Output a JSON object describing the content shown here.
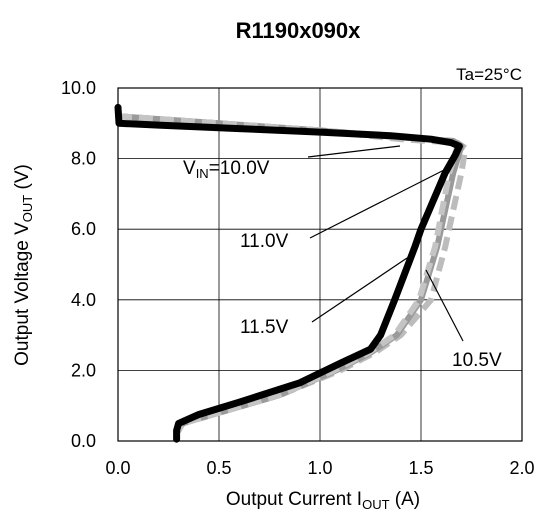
{
  "chart_data": {
    "type": "line",
    "title": "R1190x090x",
    "condition": "Ta=25°C",
    "xlabel": {
      "main": "Output Current I",
      "sub": "OUT",
      "unit": " (A)"
    },
    "ylabel": {
      "main": "Output  Voltage V",
      "sub": "OUT",
      "unit": " (V)"
    },
    "xlim": [
      0,
      2
    ],
    "ylim": [
      0,
      10
    ],
    "x_ticks": [
      "0.0",
      "0.5",
      "1.0",
      "1.5",
      "2.0"
    ],
    "y_ticks": [
      "0.0",
      "2.0",
      "4.0",
      "6.0",
      "8.0",
      "10.0"
    ],
    "grid": true,
    "series": [
      {
        "name": "10.5V",
        "color": "#bcbcbc",
        "dash": true,
        "points": [
          [
            0,
            9.2
          ],
          [
            0.5,
            9.0
          ],
          [
            1.0,
            8.8
          ],
          [
            1.4,
            8.55
          ],
          [
            1.68,
            8.45
          ],
          [
            1.72,
            8.3
          ],
          [
            1.7,
            7.6
          ],
          [
            1.62,
            5.5
          ],
          [
            1.55,
            4.0
          ],
          [
            1.4,
            3.0
          ],
          [
            1.27,
            2.5
          ],
          [
            1.1,
            2.0
          ],
          [
            0.8,
            1.3
          ],
          [
            0.5,
            0.8
          ],
          [
            0.32,
            0.5
          ],
          [
            0.3,
            0.3
          ]
        ]
      },
      {
        "name": "11.0V",
        "color": "#9a9a9a",
        "dash": false,
        "points": [
          [
            0,
            9.2
          ],
          [
            0.5,
            9.0
          ],
          [
            1.0,
            8.8
          ],
          [
            1.4,
            8.6
          ],
          [
            1.66,
            8.5
          ],
          [
            1.7,
            8.35
          ],
          [
            1.66,
            7.6
          ],
          [
            1.58,
            5.5
          ],
          [
            1.5,
            4.0
          ],
          [
            1.38,
            3.0
          ],
          [
            1.25,
            2.5
          ],
          [
            1.08,
            2.0
          ],
          [
            0.8,
            1.3
          ],
          [
            0.5,
            0.8
          ],
          [
            0.32,
            0.5
          ],
          [
            0.3,
            0.3
          ]
        ]
      },
      {
        "name": "11.5V",
        "color": "#c4c4c4",
        "dash": true,
        "points": [
          [
            0,
            9.2
          ],
          [
            0.5,
            9.0
          ],
          [
            1.0,
            8.8
          ],
          [
            1.4,
            8.6
          ],
          [
            1.65,
            8.5
          ],
          [
            1.68,
            8.35
          ],
          [
            1.64,
            7.6
          ],
          [
            1.57,
            5.5
          ],
          [
            1.49,
            4.0
          ],
          [
            1.37,
            3.0
          ],
          [
            1.24,
            2.5
          ],
          [
            1.07,
            2.0
          ],
          [
            0.8,
            1.3
          ],
          [
            0.5,
            0.8
          ],
          [
            0.32,
            0.5
          ],
          [
            0.3,
            0.3
          ]
        ]
      },
      {
        "name": "10.0V",
        "color": "#000000",
        "dash": false,
        "points": [
          [
            0,
            9.45
          ],
          [
            0.005,
            9.0
          ],
          [
            0.2,
            8.95
          ],
          [
            0.6,
            8.85
          ],
          [
            1.0,
            8.75
          ],
          [
            1.35,
            8.65
          ],
          [
            1.55,
            8.55
          ],
          [
            1.65,
            8.45
          ],
          [
            1.69,
            8.35
          ],
          [
            1.67,
            8.1
          ],
          [
            1.62,
            7.6
          ],
          [
            1.5,
            6.0
          ],
          [
            1.47,
            5.5
          ],
          [
            1.37,
            4.0
          ],
          [
            1.3,
            3.0
          ],
          [
            1.25,
            2.6
          ],
          [
            1.1,
            2.2
          ],
          [
            0.9,
            1.65
          ],
          [
            0.6,
            1.1
          ],
          [
            0.4,
            0.75
          ],
          [
            0.3,
            0.5
          ],
          [
            0.29,
            0.3
          ],
          [
            0.29,
            0.05
          ]
        ]
      }
    ],
    "annotations": [
      {
        "label": "V",
        "sub": "IN",
        "rest": "=10.0V",
        "series": "10.0V"
      },
      {
        "label": "11.0V",
        "series": "11.0V"
      },
      {
        "label": "11.5V",
        "series": "11.5V"
      },
      {
        "label": "10.5V",
        "series": "10.5V"
      }
    ]
  }
}
